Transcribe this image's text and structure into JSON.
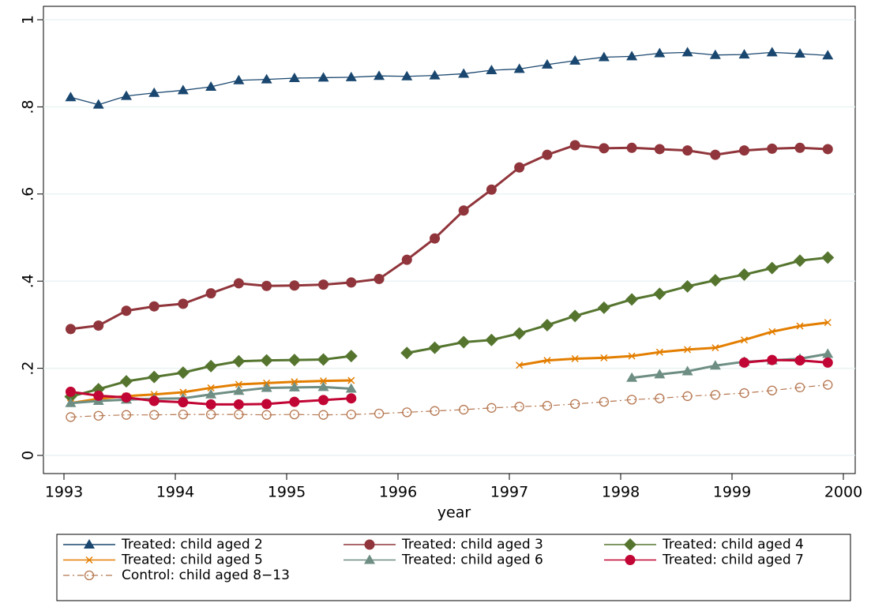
{
  "chart_data": {
    "type": "line",
    "xlabel": "year",
    "x": [
      1993.06,
      1993.31,
      1993.56,
      1993.81,
      1994.07,
      1994.32,
      1994.57,
      1994.82,
      1995.07,
      1995.33,
      1995.58,
      1995.83,
      1996.08,
      1996.33,
      1996.59,
      1996.84,
      1997.09,
      1997.34,
      1997.59,
      1997.85,
      1998.1,
      1998.35,
      1998.6,
      1998.85,
      1999.11,
      1999.36,
      1999.61,
      1999.86
    ],
    "xlim": [
      1993,
      2000
    ],
    "xticks": [
      1993,
      1994,
      1995,
      1996,
      1997,
      1998,
      1999,
      2000
    ],
    "ylim": [
      0,
      1
    ],
    "yticks": [
      0,
      {
        "value": 0.2,
        "label": ".2"
      },
      {
        "value": 0.4,
        "label": ".4"
      },
      {
        "value": 0.6,
        "label": ".6"
      },
      {
        "value": 0.8,
        "label": ".8"
      },
      1
    ],
    "grid": true,
    "series": [
      {
        "name": "Treated: child aged 2",
        "color": "#1a476f",
        "marker": "triangle",
        "values": [
          0.822,
          0.805,
          0.825,
          0.832,
          0.838,
          0.846,
          0.861,
          0.863,
          0.866,
          0.867,
          0.868,
          0.871,
          0.87,
          0.872,
          0.876,
          0.884,
          0.887,
          0.897,
          0.906,
          0.914,
          0.916,
          0.923,
          0.925,
          0.919,
          0.92,
          0.925,
          0.922,
          0.918
        ]
      },
      {
        "name": "Treated: child aged 3",
        "color": "#90353b",
        "marker": "circle",
        "values": [
          0.29,
          0.298,
          0.332,
          0.342,
          0.348,
          0.372,
          0.395,
          0.389,
          0.39,
          0.392,
          0.397,
          0.405,
          0.449,
          0.498,
          0.562,
          0.61,
          0.661,
          0.69,
          0.712,
          0.705,
          0.706,
          0.703,
          0.7,
          0.69,
          0.7,
          0.704,
          0.706,
          0.703
        ]
      },
      {
        "name": "Treated: child aged 4",
        "color": "#55752f",
        "marker": "diamond",
        "values": [
          0.135,
          0.152,
          0.17,
          0.18,
          0.19,
          0.205,
          0.216,
          0.218,
          0.219,
          0.22,
          0.228,
          null,
          0.235,
          0.247,
          0.26,
          0.265,
          0.28,
          0.299,
          0.32,
          0.339,
          0.358,
          0.371,
          0.388,
          0.402,
          0.415,
          0.43,
          0.447,
          0.454
        ]
      },
      {
        "name": "Treated: child aged 5",
        "color": "#e37e00",
        "marker": "x",
        "values": [
          0.12,
          0.13,
          0.136,
          0.14,
          0.145,
          0.155,
          0.163,
          0.166,
          0.169,
          0.171,
          0.172,
          null,
          null,
          null,
          null,
          null,
          0.207,
          0.218,
          0.222,
          0.224,
          0.228,
          0.237,
          0.243,
          0.247,
          0.265,
          0.284,
          0.297,
          0.305
        ]
      },
      {
        "name": "Treated: child aged 6",
        "color": "#6e8e84",
        "marker": "triangle",
        "values": [
          0.12,
          0.125,
          0.128,
          0.13,
          0.131,
          0.14,
          0.148,
          0.155,
          0.156,
          0.157,
          0.153,
          null,
          null,
          null,
          null,
          null,
          null,
          null,
          null,
          null,
          0.178,
          0.186,
          0.193,
          0.206,
          0.215,
          0.218,
          0.222,
          0.233
        ]
      },
      {
        "name": "Treated: child aged 7",
        "color": "#c10534",
        "marker": "circle",
        "values": [
          0.146,
          0.137,
          0.133,
          0.125,
          0.122,
          0.117,
          0.117,
          0.118,
          0.123,
          0.127,
          0.131,
          null,
          null,
          null,
          null,
          null,
          null,
          null,
          null,
          null,
          null,
          null,
          null,
          null,
          0.213,
          0.219,
          0.218,
          0.213
        ]
      },
      {
        "name": "Control: child aged 8−13",
        "color": "#b5764f",
        "marker": "hollow-circle",
        "dashed": true,
        "values": [
          0.088,
          0.091,
          0.093,
          0.093,
          0.094,
          0.094,
          0.094,
          0.093,
          0.094,
          0.093,
          0.094,
          0.096,
          0.099,
          0.102,
          0.105,
          0.109,
          0.112,
          0.114,
          0.118,
          0.123,
          0.128,
          0.131,
          0.136,
          0.139,
          0.143,
          0.149,
          0.156,
          0.162
        ]
      }
    ]
  }
}
